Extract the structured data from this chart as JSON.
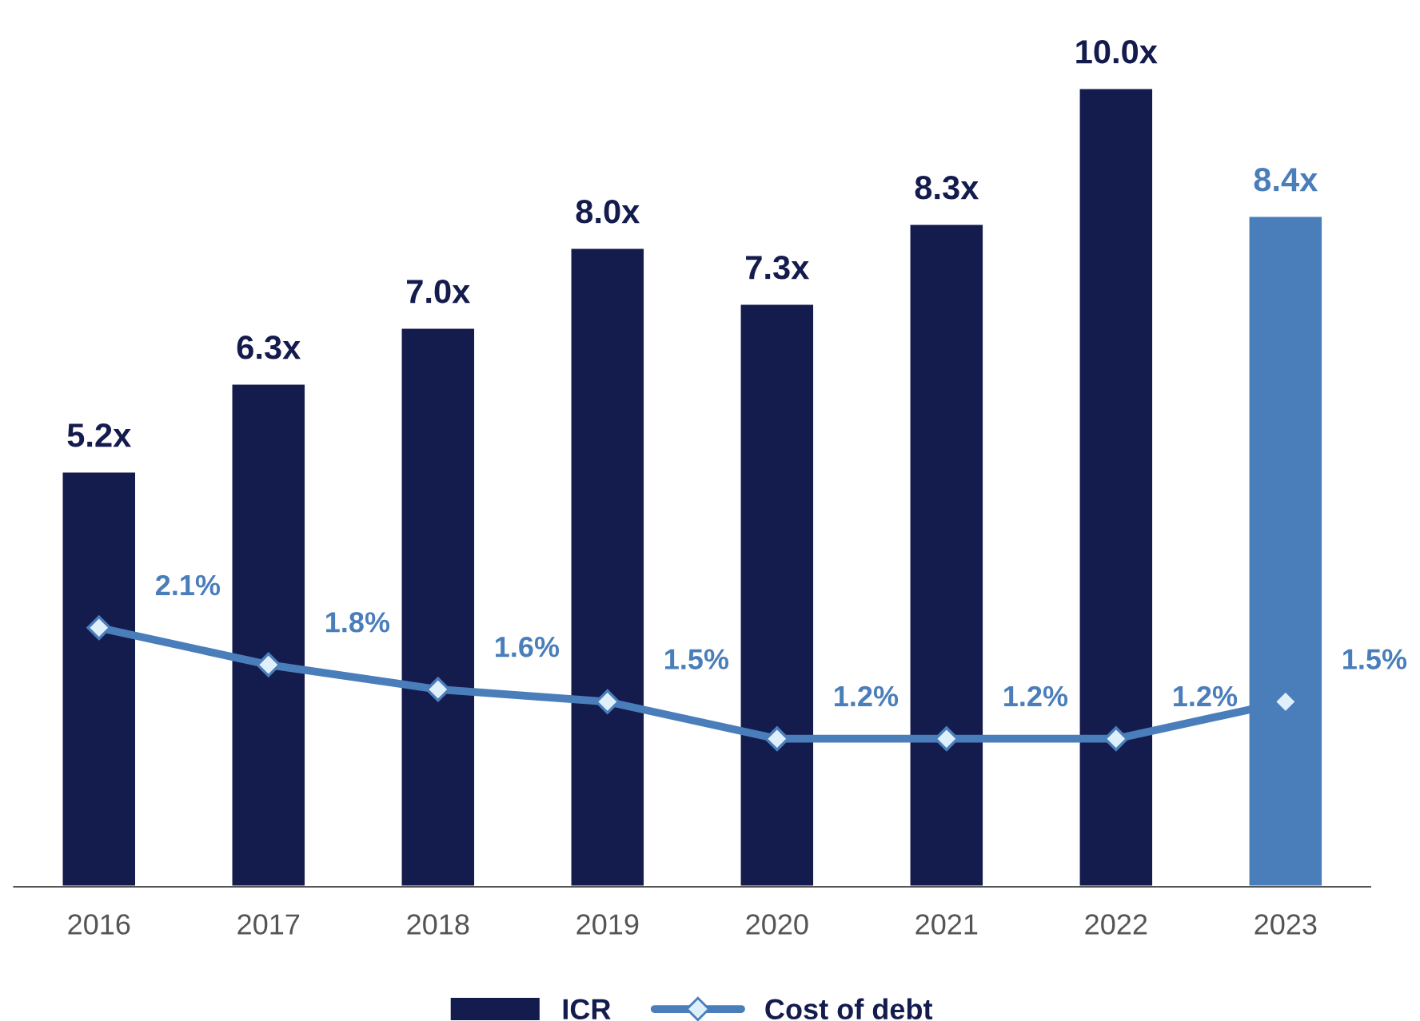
{
  "chart_data": {
    "type": "bar",
    "categories": [
      "2016",
      "2017",
      "2018",
      "2019",
      "2020",
      "2021",
      "2022",
      "2023"
    ],
    "series": [
      {
        "name": "ICR",
        "colors": [
          "#141b4d",
          "#141b4d",
          "#141b4d",
          "#141b4d",
          "#141b4d",
          "#141b4d",
          "#141b4d",
          "#4a7ebb"
        ],
        "values": [
          5.2,
          6.3,
          7.0,
          8.0,
          7.3,
          8.3,
          10.0,
          8.4
        ],
        "value_labels": [
          "5.2x",
          "6.3x",
          "7.0x",
          "8.0x",
          "7.3x",
          "8.3x",
          "10.0x",
          "8.4x"
        ]
      },
      {
        "name": "Cost of debt",
        "type": "line",
        "axis": "y2",
        "color": "#4a7ebb",
        "marker": "diamond",
        "values": [
          2.1,
          1.8,
          1.6,
          1.5,
          1.2,
          1.2,
          1.2,
          1.5
        ],
        "value_labels": [
          "2.1%",
          "1.8%",
          "1.6%",
          "1.5%",
          "1.2%",
          "1.2%",
          "1.2%",
          "1.5%"
        ]
      }
    ],
    "tick_labels": "x",
    "grid": false,
    "legend": "bottom"
  }
}
